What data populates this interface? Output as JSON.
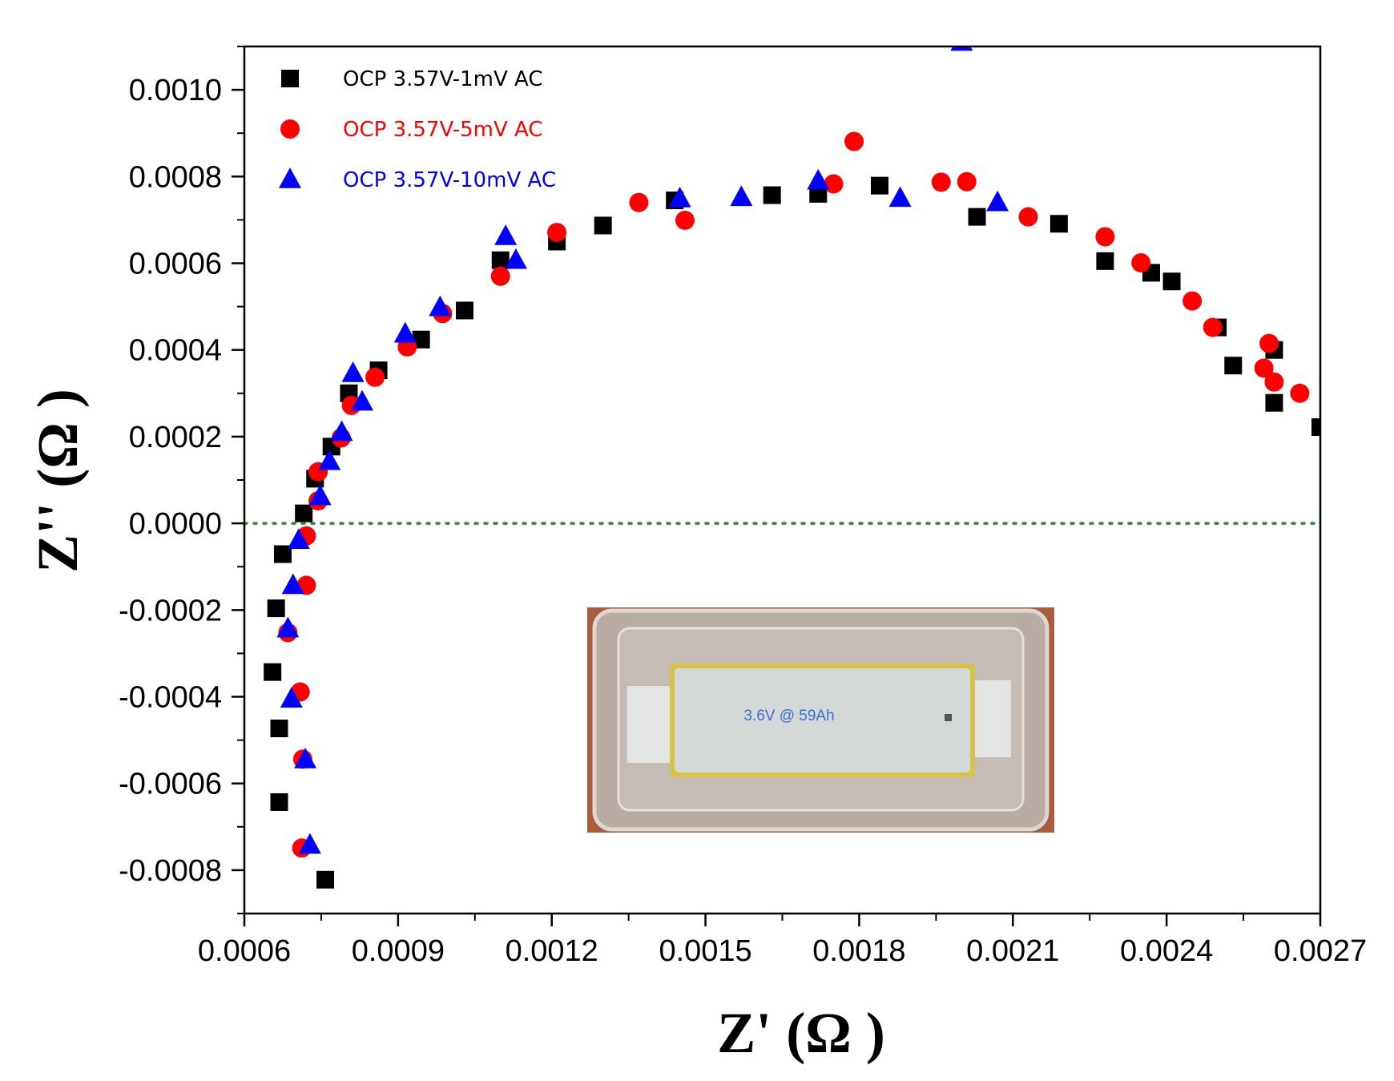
{
  "chart_data": {
    "type": "scatter",
    "xlabel": "Z' (Ω )",
    "ylabel": "Z'' (Ω )",
    "xlim": [
      0.0006,
      0.0027
    ],
    "ylim": [
      -0.0009,
      0.0011
    ],
    "x_ticks": [
      "0.0006",
      "0.0009",
      "0.0012",
      "0.0015",
      "0.0018",
      "0.0021",
      "0.0024",
      "0.0027"
    ],
    "y_ticks": [
      "0.0010",
      "0.0008",
      "0.0006",
      "0.0004",
      "0.0002",
      "0.0000",
      "-0.0002",
      "-0.0004",
      "-0.0006",
      "-0.0008"
    ],
    "x_tick_values": [
      0.0006,
      0.0009,
      0.0012,
      0.0015,
      0.0018,
      0.0021,
      0.0024,
      0.0027
    ],
    "y_tick_values": [
      0.001,
      0.0008,
      0.0006,
      0.0004,
      0.0002,
      0.0,
      -0.0002,
      -0.0004,
      -0.0006,
      -0.0008
    ],
    "grid": false,
    "legend_position": "top-left",
    "reference_line": {
      "y": 0.0,
      "style": "dotted",
      "color": "#2e8b2e"
    },
    "inset": {
      "label": "3.6V @ 59Ah",
      "description_position": "bottom-center"
    },
    "series": [
      {
        "name": "OCP 3.57V-1mV AC",
        "marker": "square",
        "color": "#000000",
        "points": [
          [
            0.000758,
            -0.000822
          ],
          [
            0.000668,
            -0.000643
          ],
          [
            0.000668,
            -0.000473
          ],
          [
            0.000655,
            -0.000343
          ],
          [
            0.000662,
            -0.000196
          ],
          [
            0.000675,
            -7.1e-05
          ],
          [
            0.000716,
            2.3e-05
          ],
          [
            0.000738,
            0.000103
          ],
          [
            0.00077,
            0.000177
          ],
          [
            0.000804,
            0.0003
          ],
          [
            0.000862,
            0.000353
          ],
          [
            0.000945,
            0.000424
          ],
          [
            0.00103,
            0.000491
          ],
          [
            0.0011,
            0.000607
          ],
          [
            0.00121,
            0.00065
          ],
          [
            0.0013,
            0.000687
          ],
          [
            0.00144,
            0.000745
          ],
          [
            0.00163,
            0.000757
          ],
          [
            0.00172,
            0.00076
          ],
          [
            0.00184,
            0.000779
          ],
          [
            0.00203,
            0.000707
          ],
          [
            0.00219,
            0.000691
          ],
          [
            0.00228,
            0.000605
          ],
          [
            0.00237,
            0.000578
          ],
          [
            0.00241,
            0.000558
          ],
          [
            0.0025,
            0.000452
          ],
          [
            0.00253,
            0.000364
          ],
          [
            0.00261,
            0.000278
          ],
          [
            0.00261,
            0.0004
          ],
          [
            0.0027,
            0.000222
          ]
        ]
      },
      {
        "name": "OCP 3.57V-5mV AC",
        "marker": "circle",
        "color": "#ff0000",
        "points": [
          [
            0.000712,
            -0.000749
          ],
          [
            0.000714,
            -0.000544
          ],
          [
            0.000709,
            -0.000389
          ],
          [
            0.000685,
            -0.000252
          ],
          [
            0.000721,
            -0.000143
          ],
          [
            0.000721,
            -2.9e-05
          ],
          [
            0.000744,
            5.2e-05
          ],
          [
            0.000744,
            0.000119
          ],
          [
            0.000789,
            0.000197
          ],
          [
            0.000809,
            0.000272
          ],
          [
            0.000855,
            0.000337
          ],
          [
            0.000918,
            0.000407
          ],
          [
            0.000987,
            0.000484
          ],
          [
            0.0011,
            0.00057
          ],
          [
            0.00121,
            0.000671
          ],
          [
            0.00137,
            0.00074
          ],
          [
            0.00146,
            0.000699
          ],
          [
            0.00175,
            0.000783
          ],
          [
            0.00179,
            0.000881
          ],
          [
            0.00196,
            0.000787
          ],
          [
            0.00201,
            0.000788
          ],
          [
            0.00213,
            0.000707
          ],
          [
            0.00228,
            0.000661
          ],
          [
            0.00235,
            0.000601
          ],
          [
            0.00245,
            0.000513
          ],
          [
            0.00249,
            0.000452
          ],
          [
            0.00259,
            0.000358
          ],
          [
            0.0026,
            0.000415
          ],
          [
            0.00261,
            0.000326
          ],
          [
            0.00266,
            0.0003
          ]
        ]
      },
      {
        "name": "OCP 3.57V-10mV AC",
        "marker": "triangle",
        "color": "#0000ff",
        "points": [
          [
            0.000728,
            -0.000742
          ],
          [
            0.000719,
            -0.000545
          ],
          [
            0.000692,
            -0.000405
          ],
          [
            0.000685,
            -0.000243
          ],
          [
            0.000695,
            -0.000143
          ],
          [
            0.000706,
            -3.9e-05
          ],
          [
            0.000748,
            6.2e-05
          ],
          [
            0.000766,
            0.000143
          ],
          [
            0.00079,
            0.00021
          ],
          [
            0.000812,
            0.000346
          ],
          [
            0.00083,
            0.00028
          ],
          [
            0.000914,
            0.000437
          ],
          [
            0.000982,
            0.000498
          ],
          [
            0.00111,
            0.000662
          ],
          [
            0.00113,
            0.000607
          ],
          [
            0.00145,
            0.000749
          ],
          [
            0.00157,
            0.000752
          ],
          [
            0.00172,
            0.00079
          ],
          [
            0.00188,
            0.00075
          ],
          [
            0.00207,
            0.00074
          ],
          [
            0.002,
            0.00111
          ]
        ]
      }
    ]
  }
}
